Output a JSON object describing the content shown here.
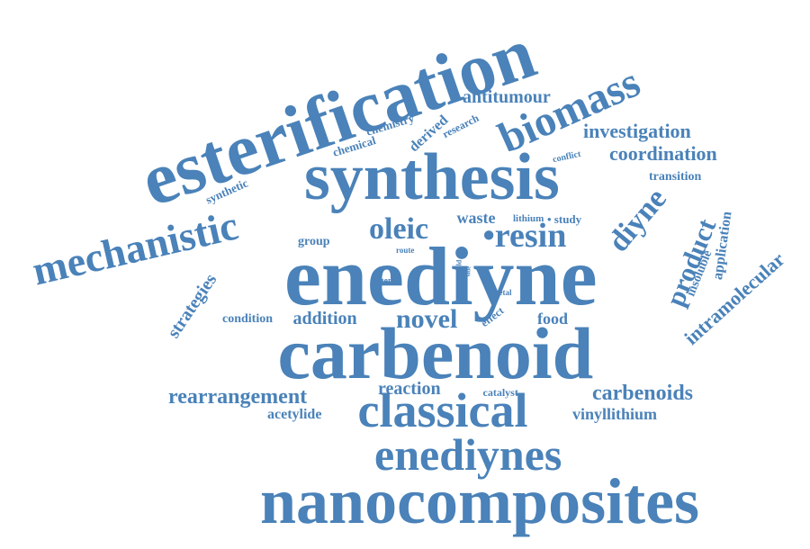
{
  "color": "#4a82b9",
  "words": [
    {
      "id": "nanocomposites",
      "text": "nanocomposites"
    },
    {
      "id": "enediyne",
      "text": "enediyne"
    },
    {
      "id": "carbenoid",
      "text": "carbenoid"
    },
    {
      "id": "esterification",
      "text": "esterification"
    },
    {
      "id": "synthesis",
      "text": "synthesis"
    },
    {
      "id": "classical",
      "text": "classical"
    },
    {
      "id": "enediynes",
      "text": "enediynes"
    },
    {
      "id": "mechanistic",
      "text": "mechanistic"
    },
    {
      "id": "biomass",
      "text": "biomass"
    },
    {
      "id": "resin",
      "text": "•resin"
    },
    {
      "id": "oleic",
      "text": "oleic"
    },
    {
      "id": "diyne",
      "text": "diyne"
    },
    {
      "id": "novel",
      "text": "novel"
    },
    {
      "id": "product",
      "text": "product"
    },
    {
      "id": "rearrangement",
      "text": "rearrangement"
    },
    {
      "id": "carbenoids",
      "text": "carbenoids"
    },
    {
      "id": "intramolecular",
      "text": "intramolecular"
    },
    {
      "id": "investigation",
      "text": "investigation"
    },
    {
      "id": "coordination",
      "text": "coordination"
    },
    {
      "id": "strategies",
      "text": "strategies"
    },
    {
      "id": "addition",
      "text": "addition"
    },
    {
      "id": "reaction",
      "text": "reaction"
    },
    {
      "id": "antitumour",
      "text": "antitumour"
    },
    {
      "id": "vinyllithium",
      "text": "vinyllithium"
    },
    {
      "id": "food",
      "text": "food"
    },
    {
      "id": "waste",
      "text": "waste"
    },
    {
      "id": "acetylide",
      "text": "acetylide"
    },
    {
      "id": "application",
      "text": "application"
    },
    {
      "id": "derived",
      "text": "derived"
    },
    {
      "id": "transition",
      "text": "transition"
    },
    {
      "id": "insoluble",
      "text": "insoluble"
    },
    {
      "id": "condition",
      "text": "condition"
    },
    {
      "id": "chemistry",
      "text": "chemistry"
    },
    {
      "id": "chemical",
      "text": "chemical"
    },
    {
      "id": "synthetic",
      "text": "synthetic"
    },
    {
      "id": "group",
      "text": "group"
    },
    {
      "id": "study",
      "text": "• study"
    },
    {
      "id": "catalyst",
      "text": "catalyst"
    },
    {
      "id": "effect",
      "text": "effect"
    },
    {
      "id": "research",
      "text": "research"
    },
    {
      "id": "lithium",
      "text": "lithium"
    },
    {
      "id": "conflict",
      "text": "conflict"
    },
    {
      "id": "metal",
      "text": "metal"
    },
    {
      "id": "agent",
      "text": "agent"
    },
    {
      "id": "route",
      "text": "route"
    },
    {
      "id": "yield",
      "text": "yield"
    },
    {
      "id": "side",
      "text": "side"
    }
  ]
}
